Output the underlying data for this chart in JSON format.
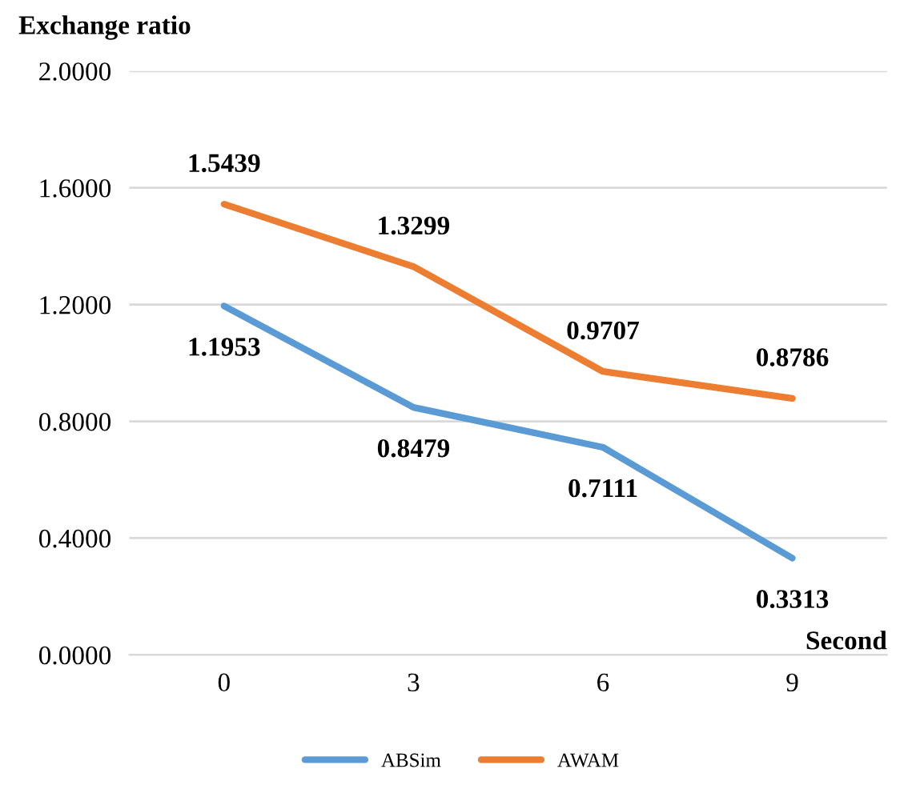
{
  "chart_data": {
    "type": "line",
    "ylabel": "Exchange ratio",
    "xlabel": "Second",
    "categories": [
      "0",
      "3",
      "6",
      "9"
    ],
    "series": [
      {
        "name": "ABSim",
        "color": "#5b9bd5",
        "values": [
          1.1953,
          0.8479,
          0.7111,
          0.3313
        ]
      },
      {
        "name": "AWAM",
        "color": "#ed7d31",
        "values": [
          1.5439,
          1.3299,
          0.9707,
          0.8786
        ]
      }
    ],
    "ylim": [
      0,
      2
    ],
    "yticks": [
      {
        "value": 0,
        "label": "0.0000"
      },
      {
        "value": 0.4,
        "label": "0.4000"
      },
      {
        "value": 0.8,
        "label": "0.8000"
      },
      {
        "value": 1.2,
        "label": "1.2000"
      },
      {
        "value": 1.6,
        "label": "1.6000"
      },
      {
        "value": 2,
        "label": "2.0000"
      }
    ],
    "grid": "y",
    "legend": "bottom",
    "data_labels": true,
    "marker": "none",
    "line_style": "solid"
  }
}
